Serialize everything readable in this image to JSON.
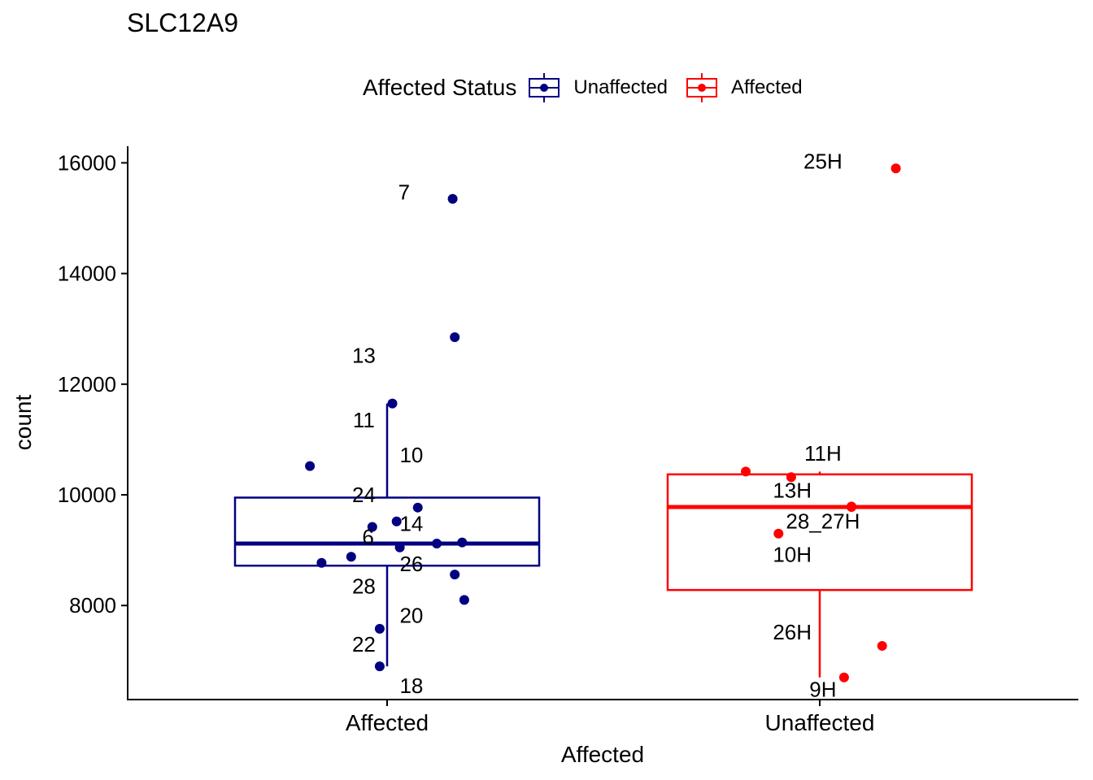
{
  "chart_data": {
    "type": "box",
    "title": "SLC12A9",
    "xlabel": "Affected",
    "ylabel": "count",
    "ylim": [
      6300,
      16300
    ],
    "yticks": [
      8000,
      10000,
      12000,
      14000,
      16000
    ],
    "legend": {
      "title": "Affected Status",
      "position": "top",
      "entries": [
        {
          "label": "Unaffected",
          "color": "#000080"
        },
        {
          "label": "Affected",
          "color": "#ff0000"
        }
      ]
    },
    "categories": [
      "Affected",
      "Unaffected"
    ],
    "groups": [
      {
        "category": "Affected",
        "color": "#000080",
        "box": {
          "lower_whisker": 6900,
          "q1": 8720,
          "median": 9120,
          "q3": 9950,
          "upper_whisker": 11650
        },
        "points": [
          {
            "y": 15350,
            "jitter": 0.62,
            "label": "7",
            "label_y": 15470,
            "label_jitter": 0.16
          },
          {
            "y": 12850,
            "jitter": 0.64,
            "label": "13",
            "label_y": 12520,
            "label_jitter": -0.22
          },
          {
            "y": 11650,
            "jitter": 0.05,
            "label": "11",
            "label_y": 11350,
            "label_jitter": -0.22
          },
          {
            "y": 10520,
            "jitter": -0.73,
            "label": "10",
            "label_y": 10720,
            "label_jitter": 0.23
          },
          {
            "y": 9770,
            "jitter": 0.29,
            "label": "24",
            "label_y": 10000,
            "label_jitter": -0.22
          },
          {
            "y": 9520,
            "jitter": 0.09,
            "label": "14",
            "label_y": 9480,
            "label_jitter": 0.23
          },
          {
            "y": 9420,
            "jitter": -0.14,
            "label": "6",
            "label_y": 9240,
            "label_jitter": -0.18
          },
          {
            "y": 9140,
            "jitter": 0.71,
            "label": "",
            "label_y": 0,
            "label_jitter": 0
          },
          {
            "y": 9120,
            "jitter": 0.47,
            "label": "",
            "label_y": 0,
            "label_jitter": 0
          },
          {
            "y": 9050,
            "jitter": 0.12,
            "label": "26",
            "label_y": 8750,
            "label_jitter": 0.23
          },
          {
            "y": 8880,
            "jitter": -0.34,
            "label": "",
            "label_y": 0,
            "label_jitter": 0
          },
          {
            "y": 8770,
            "jitter": -0.62,
            "label": "28",
            "label_y": 8350,
            "label_jitter": -0.22
          },
          {
            "y": 8560,
            "jitter": 0.64,
            "label": "",
            "label_y": 0,
            "label_jitter": 0
          },
          {
            "y": 8100,
            "jitter": 0.73,
            "label": "20",
            "label_y": 7820,
            "label_jitter": 0.23
          },
          {
            "y": 7580,
            "jitter": -0.07,
            "label": "22",
            "label_y": 7300,
            "label_jitter": -0.22
          },
          {
            "y": 6900,
            "jitter": -0.07,
            "label": "18",
            "label_y": 6550,
            "label_jitter": 0.23
          }
        ]
      },
      {
        "category": "Unaffected",
        "color": "#ff0000",
        "box": {
          "lower_whisker": 6700,
          "q1": 8280,
          "median": 9780,
          "q3": 10370,
          "upper_whisker": 10420
        },
        "points": [
          {
            "y": 15900,
            "jitter": 0.72,
            "label": "25H",
            "label_y": 16030,
            "label_jitter": 0.03
          },
          {
            "y": 10420,
            "jitter": -0.7,
            "label": "",
            "label_y": 0,
            "label_jitter": 0
          },
          {
            "y": 10320,
            "jitter": -0.27,
            "label": "11H",
            "label_y": 10750,
            "label_jitter": 0.03
          },
          {
            "y": 9790,
            "jitter": 0.3,
            "label": "13H",
            "label_y": 10080,
            "label_jitter": -0.26
          },
          {
            "y": 9780,
            "jitter": 0.3,
            "label": "28_27H",
            "label_y": 9520,
            "label_jitter": 0.03
          },
          {
            "y": 9300,
            "jitter": -0.39,
            "label": "10H",
            "label_y": 8920,
            "label_jitter": -0.26
          },
          {
            "y": 7270,
            "jitter": 0.59,
            "label": "26H",
            "label_y": 7520,
            "label_jitter": -0.26
          },
          {
            "y": 6700,
            "jitter": 0.23,
            "label": "9H",
            "label_y": 6480,
            "label_jitter": 0.03
          }
        ]
      }
    ]
  }
}
